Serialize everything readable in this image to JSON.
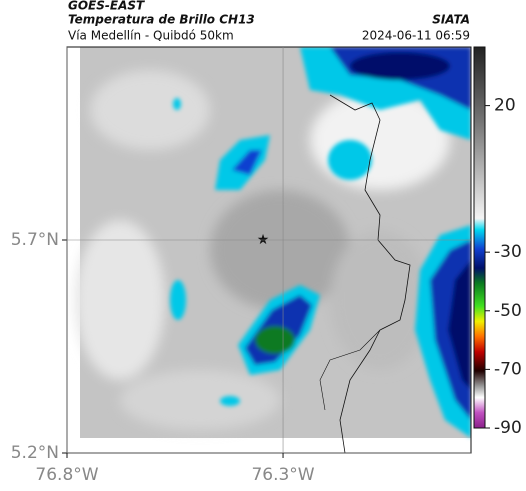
{
  "header": {
    "satellite": "GOES-EAST",
    "product": "Temperatura de Brillo CH13",
    "source": "SIATA",
    "subtitle": "Vía Medellín - Quibdó 50km",
    "timestamp": "2024-06-11 06:59"
  },
  "map": {
    "lat_range": [
      5.2,
      6.153
    ],
    "lon_range": [
      -76.8,
      -75.865
    ],
    "lat_ticks": [
      {
        "value": 5.7,
        "label": "5.7°N"
      },
      {
        "value": 5.2,
        "label": "5.2°N"
      }
    ],
    "lon_ticks": [
      {
        "value": -76.8,
        "label": "76.8°W"
      },
      {
        "value": -76.3,
        "label": "76.3°W"
      }
    ]
  },
  "colorbar": {
    "lim": [
      40,
      -90
    ],
    "ticks": [
      20,
      -30,
      -50,
      -70,
      -90
    ]
  }
}
